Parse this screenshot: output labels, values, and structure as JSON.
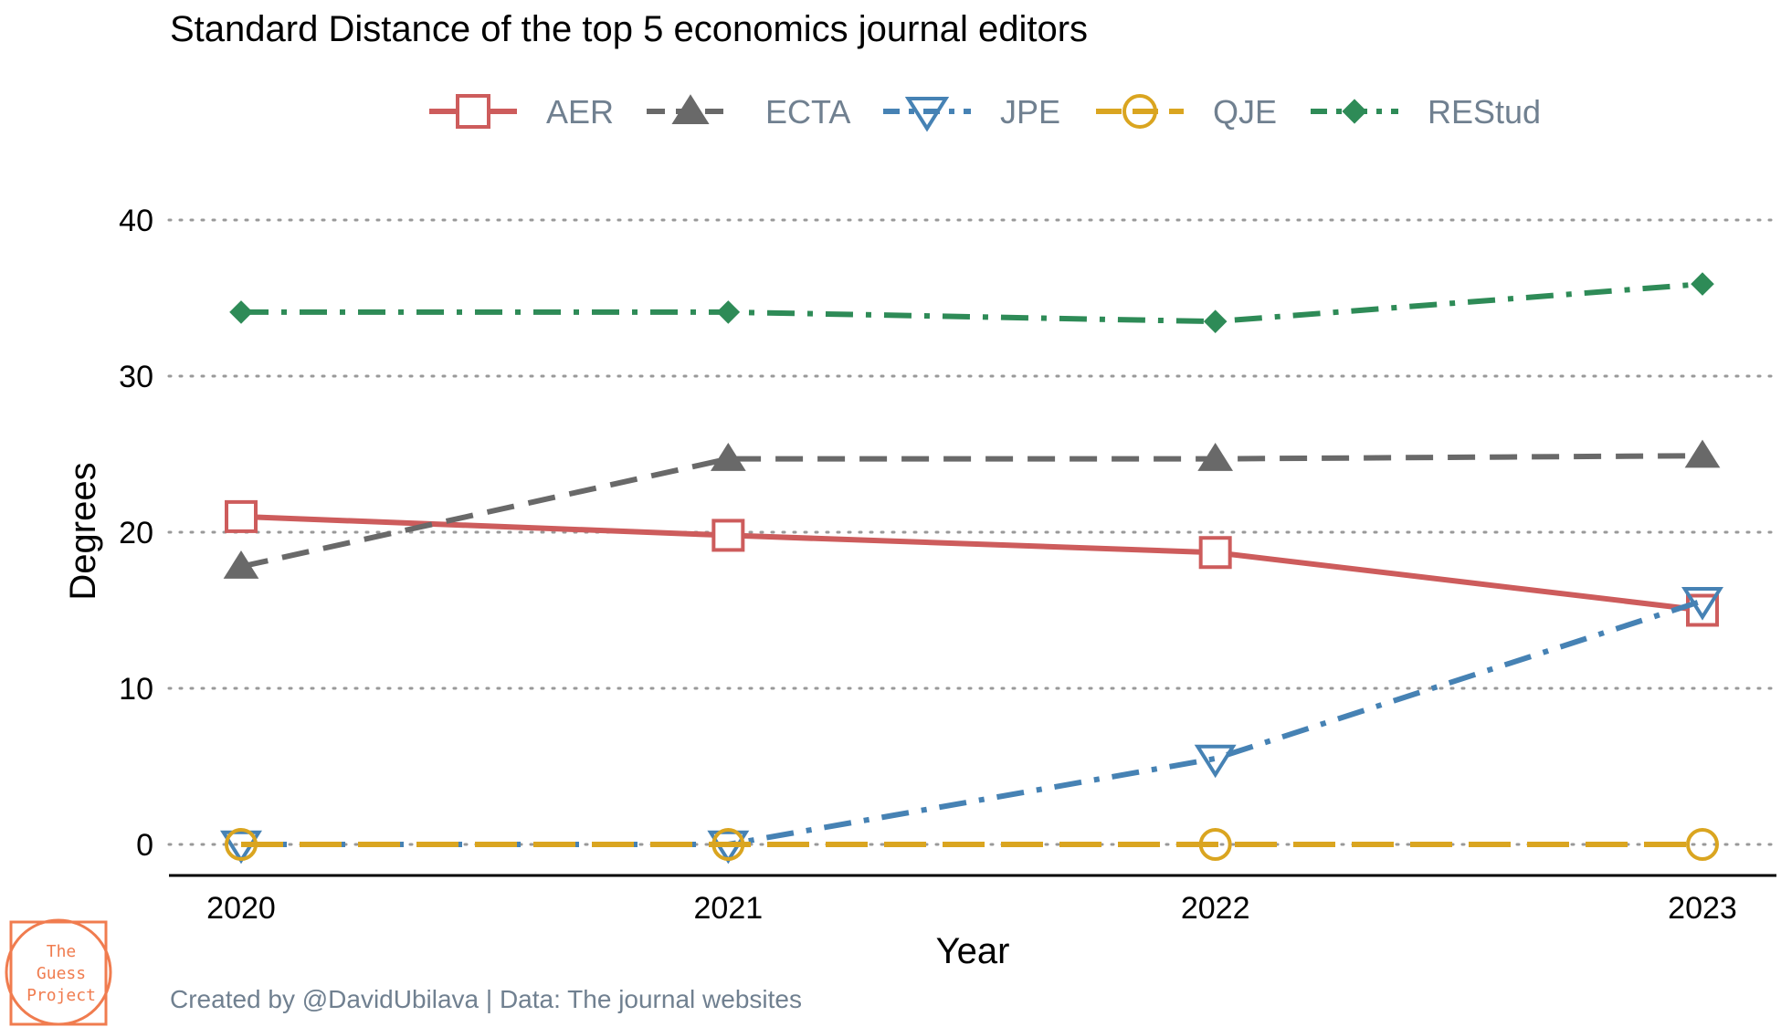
{
  "chart_data": {
    "type": "line",
    "title": "Standard Distance of the top 5 economics journal editors",
    "xlabel": "Year",
    "ylabel": "Degrees",
    "x": [
      2020,
      2021,
      2022,
      2023
    ],
    "x_ticks": [
      "2020",
      "2021",
      "2022",
      "2023"
    ],
    "y_ticks": [
      "0",
      "10",
      "20",
      "30",
      "40"
    ],
    "ylim": [
      -2,
      42
    ],
    "grid": "horizontal dotted",
    "legend_position": "top",
    "series": [
      {
        "name": "AER",
        "values": [
          21.0,
          19.8,
          18.7,
          15.0
        ],
        "color": "#cd5c5c",
        "dash": "solid",
        "marker": "open-square"
      },
      {
        "name": "ECTA",
        "values": [
          17.8,
          24.7,
          24.7,
          24.9
        ],
        "color": "#696969",
        "dash": "dashed",
        "marker": "filled-triangle"
      },
      {
        "name": "JPE",
        "values": [
          0.0,
          0.0,
          5.5,
          15.6
        ],
        "color": "#4682b4",
        "dash": "dotdash",
        "marker": "open-triangle-down"
      },
      {
        "name": "QJE",
        "values": [
          0.0,
          0.0,
          0.0,
          0.0
        ],
        "color": "#daa520",
        "dash": "longdash",
        "marker": "open-circle"
      },
      {
        "name": "REStud",
        "values": [
          34.1,
          34.1,
          33.5,
          35.9
        ],
        "color": "#2e8b57",
        "dash": "dotdash",
        "marker": "filled-diamond"
      }
    ]
  },
  "caption": "Created by @DavidUbilava | Data: The journal websites",
  "logo": {
    "lines": [
      "The",
      "Guess",
      "Project"
    ],
    "color": "#f07c4f"
  }
}
